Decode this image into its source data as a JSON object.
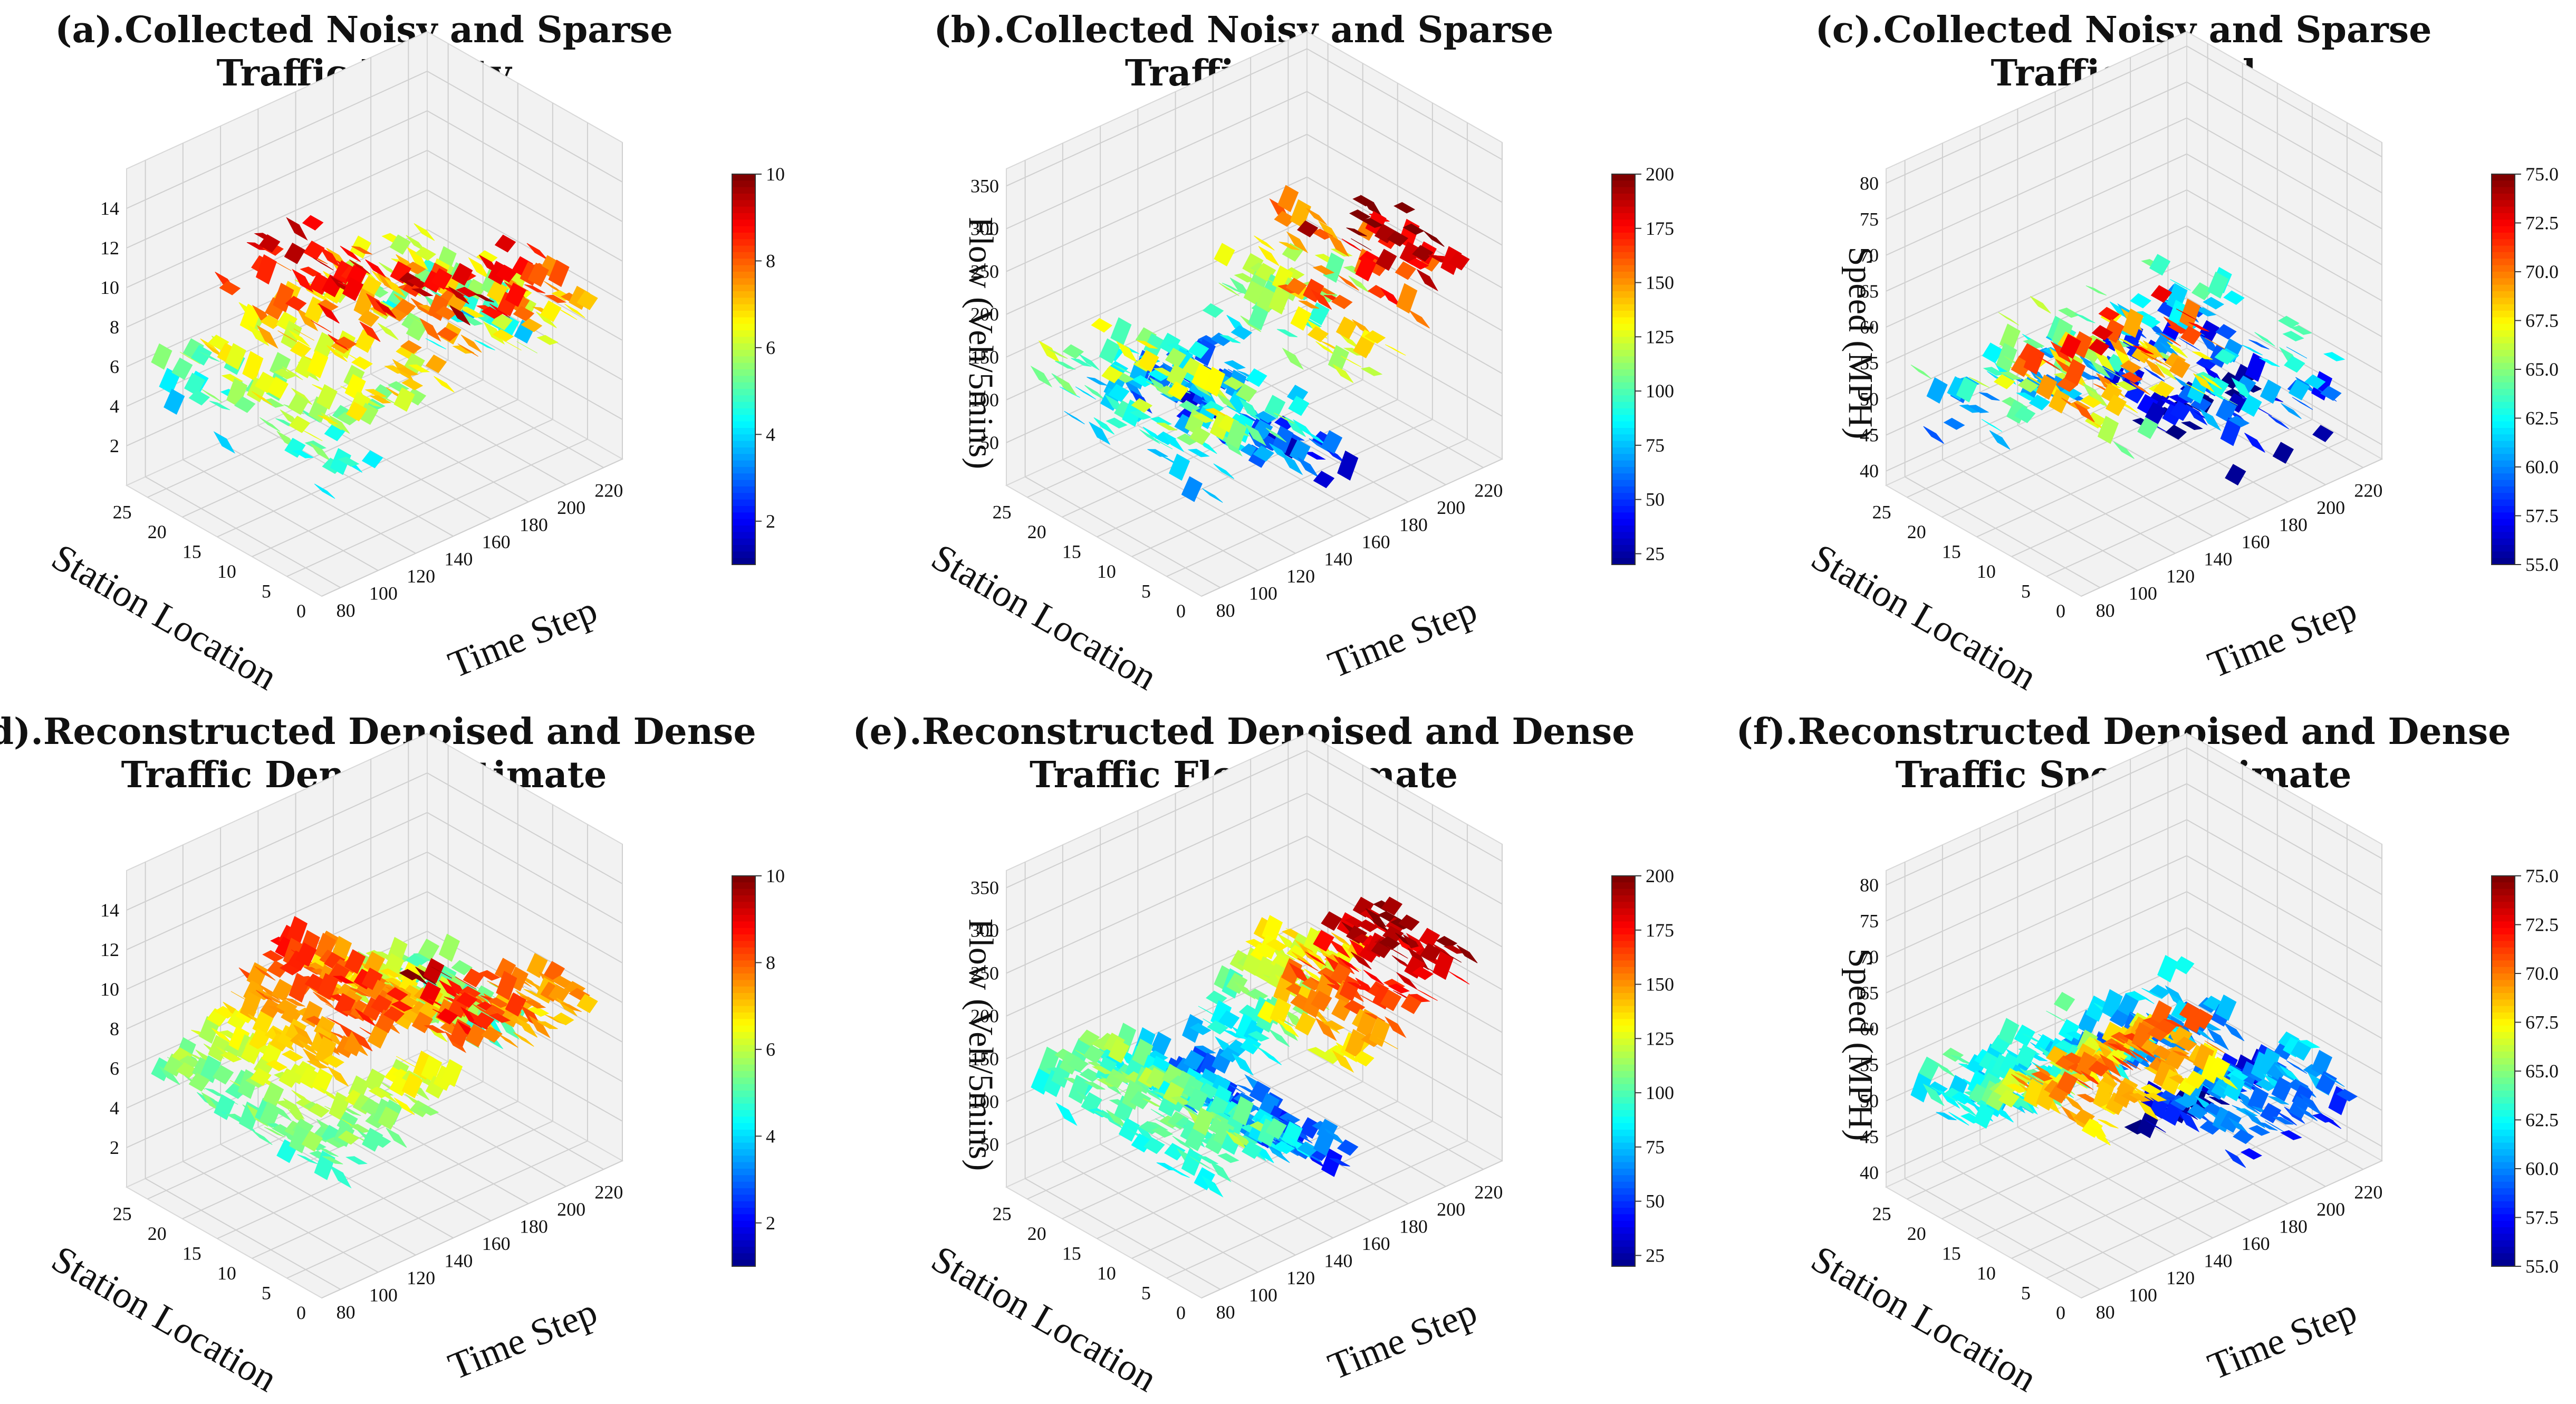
{
  "chart_data": [
    {
      "id": "a",
      "type": "surface",
      "title_line1": "(a).Collected Noisy and Sparse",
      "title_line2": "Traffic Density",
      "xlabel": "Time Step",
      "ylabel": "Station Location",
      "zlabel": "",
      "x_ticks": [
        80,
        100,
        120,
        140,
        160,
        180,
        200,
        220
      ],
      "y_ticks": [
        0,
        5,
        10,
        15,
        20,
        25
      ],
      "z_ticks": [
        2,
        4,
        6,
        8,
        10,
        12,
        14
      ],
      "xlim": [
        70,
        230
      ],
      "ylim": [
        0,
        28
      ],
      "zlim": [
        0,
        16
      ],
      "cbar_ticks": [
        2,
        4,
        6,
        8,
        10
      ],
      "cbar_range": [
        1,
        10
      ],
      "colormap": "jet",
      "sparse": true
    },
    {
      "id": "b",
      "type": "surface",
      "title_line1": "(b).Collected Noisy and Sparse",
      "title_line2": "Traffic Flow",
      "xlabel": "Time Step",
      "ylabel": "Station Location",
      "zlabel": "Flow (Veh/5mins)",
      "x_ticks": [
        80,
        100,
        120,
        140,
        160,
        180,
        200,
        220
      ],
      "y_ticks": [
        0,
        5,
        10,
        15,
        20,
        25
      ],
      "z_ticks": [
        50,
        100,
        150,
        200,
        250,
        300,
        350
      ],
      "xlim": [
        70,
        230
      ],
      "ylim": [
        0,
        28
      ],
      "zlim": [
        0,
        370
      ],
      "cbar_ticks": [
        25,
        50,
        75,
        100,
        125,
        150,
        175,
        200
      ],
      "cbar_range": [
        20,
        200
      ],
      "colormap": "jet",
      "sparse": true
    },
    {
      "id": "c",
      "type": "surface",
      "title_line1": "(c).Collected Noisy and Sparse",
      "title_line2": "Traffic Speed",
      "xlabel": "Time Step",
      "ylabel": "Station Location",
      "zlabel": "Speed (MPH)",
      "x_ticks": [
        80,
        100,
        120,
        140,
        160,
        180,
        200,
        220
      ],
      "y_ticks": [
        0,
        5,
        10,
        15,
        20,
        25
      ],
      "z_ticks": [
        40,
        45,
        50,
        55,
        60,
        65,
        70,
        75,
        80
      ],
      "xlim": [
        70,
        230
      ],
      "ylim": [
        0,
        28
      ],
      "zlim": [
        38,
        82
      ],
      "cbar_ticks": [
        "55.0",
        "57.5",
        "60.0",
        "62.5",
        "65.0",
        "67.5",
        "70.0",
        "72.5",
        "75.0"
      ],
      "cbar_range": [
        55,
        75
      ],
      "colormap": "jet",
      "sparse": true
    },
    {
      "id": "d",
      "type": "surface",
      "title_line1": "(d).Reconstructed Denoised and Dense",
      "title_line2": "Traffic Density Estimate",
      "xlabel": "Time Step",
      "ylabel": "Station Location",
      "zlabel": "",
      "x_ticks": [
        80,
        100,
        120,
        140,
        160,
        180,
        200,
        220
      ],
      "y_ticks": [
        0,
        5,
        10,
        15,
        20,
        25
      ],
      "z_ticks": [
        2,
        4,
        6,
        8,
        10,
        12,
        14
      ],
      "xlim": [
        70,
        230
      ],
      "ylim": [
        0,
        28
      ],
      "zlim": [
        0,
        16
      ],
      "cbar_ticks": [
        2,
        4,
        6,
        8,
        10
      ],
      "cbar_range": [
        1,
        10
      ],
      "colormap": "jet",
      "sparse": false
    },
    {
      "id": "e",
      "type": "surface",
      "title_line1": "(e).Reconstructed Denoised and Dense",
      "title_line2": "Traffic Flow Estimate",
      "xlabel": "Time Step",
      "ylabel": "Station Location",
      "zlabel": "Flow (Veh/5mins)",
      "x_ticks": [
        80,
        100,
        120,
        140,
        160,
        180,
        200,
        220
      ],
      "y_ticks": [
        0,
        5,
        10,
        15,
        20,
        25
      ],
      "z_ticks": [
        50,
        100,
        150,
        200,
        250,
        300,
        350
      ],
      "xlim": [
        70,
        230
      ],
      "ylim": [
        0,
        28
      ],
      "zlim": [
        0,
        370
      ],
      "cbar_ticks": [
        25,
        50,
        75,
        100,
        125,
        150,
        175,
        200
      ],
      "cbar_range": [
        20,
        200
      ],
      "colormap": "jet",
      "sparse": false
    },
    {
      "id": "f",
      "type": "surface",
      "title_line1": "(f).Reconstructed Denoised and Dense",
      "title_line2": "Traffic Speed Estimate",
      "xlabel": "Time Step",
      "ylabel": "Station Location",
      "zlabel": "Speed (MPH)",
      "x_ticks": [
        80,
        100,
        120,
        140,
        160,
        180,
        200,
        220
      ],
      "y_ticks": [
        0,
        5,
        10,
        15,
        20,
        25
      ],
      "z_ticks": [
        40,
        45,
        50,
        55,
        60,
        65,
        70,
        75,
        80
      ],
      "xlim": [
        70,
        230
      ],
      "ylim": [
        0,
        28
      ],
      "zlim": [
        38,
        82
      ],
      "cbar_ticks": [
        "55.0",
        "57.5",
        "60.0",
        "62.5",
        "65.0",
        "67.5",
        "70.0",
        "72.5",
        "75.0"
      ],
      "cbar_range": [
        55,
        75
      ],
      "colormap": "jet",
      "sparse": false
    }
  ]
}
